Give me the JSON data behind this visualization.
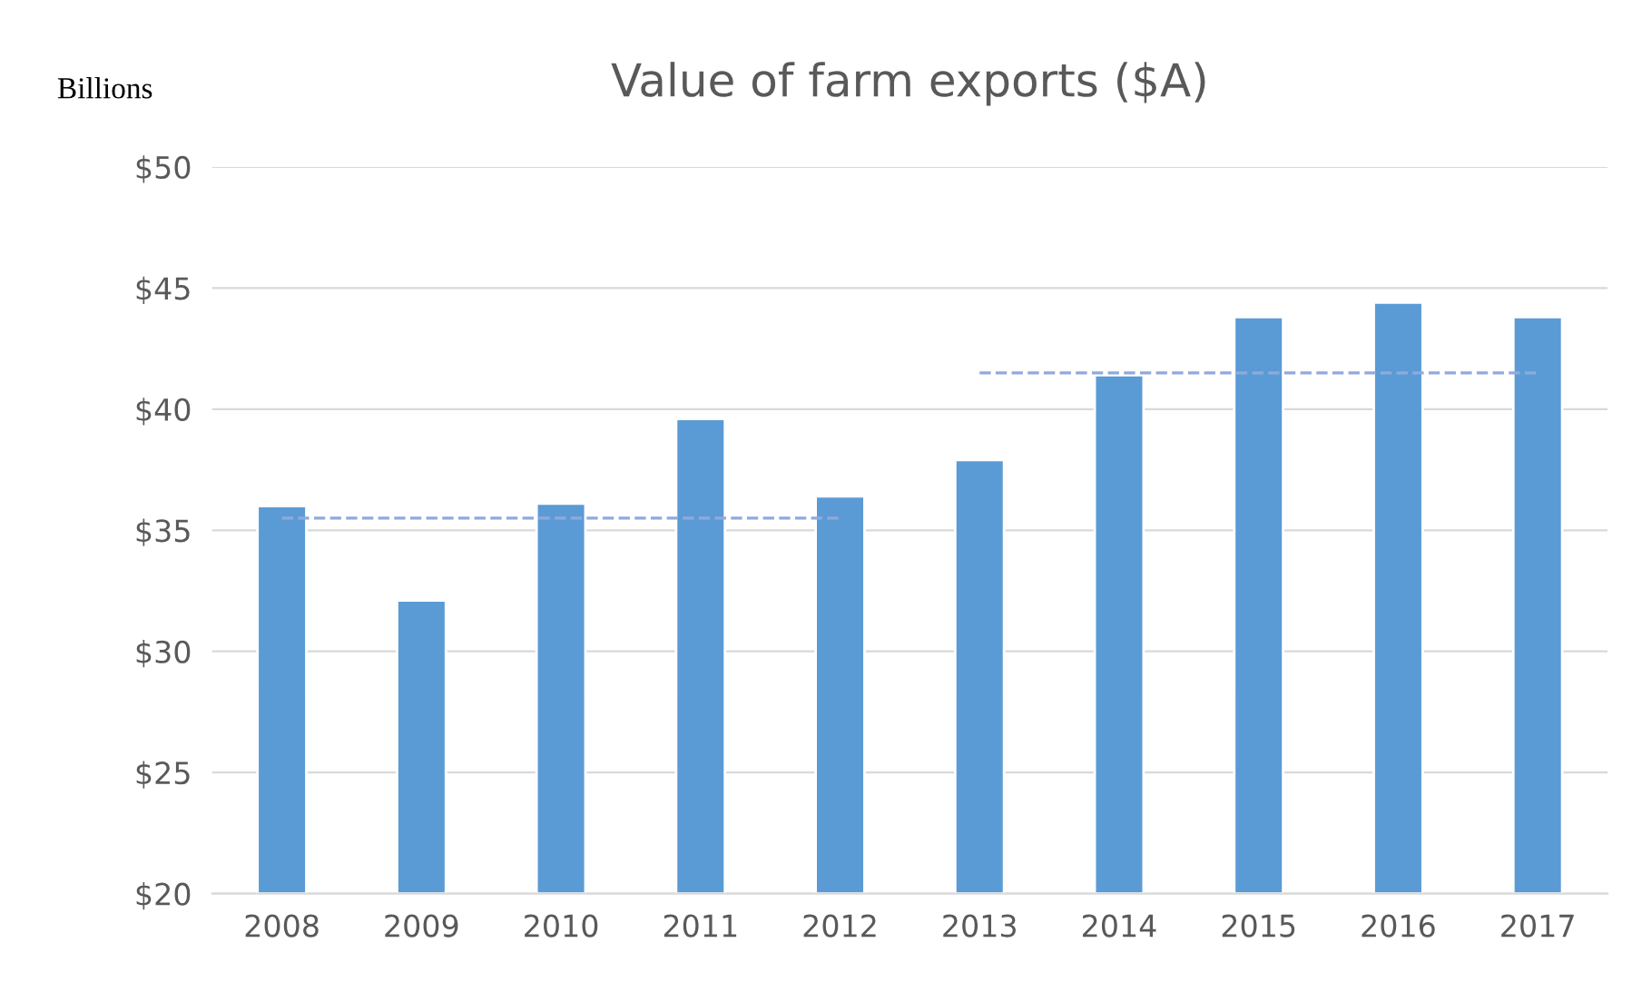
{
  "chart_data": {
    "type": "bar",
    "title": "Value of farm exports ($A)",
    "ylabel": "Billions",
    "categories": [
      "2008",
      "2009",
      "2010",
      "2011",
      "2012",
      "2013",
      "2014",
      "2015",
      "2016",
      "2017"
    ],
    "series": [
      {
        "color": "#5b9bd5",
        "values": [
          36.0,
          32.1,
          36.1,
          39.6,
          36.4,
          37.9,
          41.4,
          43.8,
          44.4,
          43.8
        ]
      },
      {
        "type": "line",
        "color": "#8faadc",
        "line_style": "dashed",
        "values": [
          35.5,
          35.5,
          35.5,
          35.5,
          35.5,
          null,
          null,
          null,
          null,
          null
        ]
      },
      {
        "type": "line",
        "color": "#8faadc",
        "line_style": "dashed",
        "values": [
          null,
          null,
          null,
          null,
          null,
          41.5,
          41.5,
          41.5,
          41.5,
          41.5
        ]
      }
    ],
    "ylim": [
      20,
      50
    ],
    "yticks": [
      {
        "value": 20,
        "label": "$20"
      },
      {
        "value": 25,
        "label": "$25"
      },
      {
        "value": 30,
        "label": "$30"
      },
      {
        "value": 35,
        "label": "$35"
      },
      {
        "value": 40,
        "label": "$40"
      },
      {
        "value": 45,
        "label": "$45"
      },
      {
        "value": 50,
        "label": "$50"
      }
    ],
    "grid": "y",
    "legend": false
  }
}
